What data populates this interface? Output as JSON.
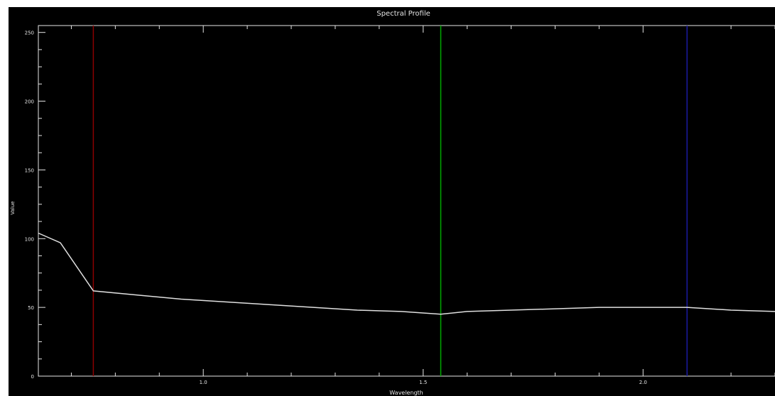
{
  "chart_data": {
    "type": "line",
    "title": "Spectral Profile",
    "xlabel": "Wavelength",
    "ylabel": "Value",
    "xlim": [
      0.625,
      2.3
    ],
    "ylim": [
      0,
      255
    ],
    "y_ticks": [
      0,
      50,
      100,
      150,
      200,
      250
    ],
    "x_ticks": [
      1.0,
      1.5,
      2.0
    ],
    "x_tick_labels": [
      "1.0",
      "1.5",
      "2.0"
    ],
    "series": [
      {
        "color": "#e0e0e0",
        "points": [
          [
            0.625,
            104
          ],
          [
            0.675,
            97
          ],
          [
            0.75,
            62
          ],
          [
            0.85,
            59
          ],
          [
            0.95,
            56
          ],
          [
            1.05,
            54
          ],
          [
            1.15,
            52
          ],
          [
            1.25,
            50
          ],
          [
            1.35,
            48
          ],
          [
            1.45,
            47
          ],
          [
            1.54,
            45
          ],
          [
            1.6,
            47
          ],
          [
            1.7,
            48
          ],
          [
            1.8,
            49
          ],
          [
            1.9,
            50
          ],
          [
            2.0,
            50
          ],
          [
            2.1,
            50
          ],
          [
            2.2,
            48
          ],
          [
            2.3,
            47
          ]
        ]
      }
    ],
    "markers": [
      {
        "x": 0.75,
        "color": "#8b0000"
      },
      {
        "x": 1.54,
        "color": "#00aa00"
      },
      {
        "x": 2.1,
        "color": "#1a1aa0"
      }
    ],
    "grid": false,
    "background": "#000000",
    "foreground": "#e6e6e6"
  }
}
